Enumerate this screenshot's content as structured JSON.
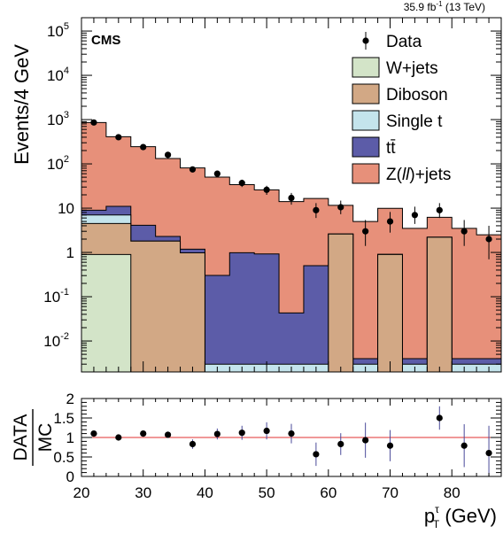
{
  "chart_data": [
    {
      "type": "bar",
      "stacked": true,
      "log_y": true,
      "lumi_label": "35.9 fb",
      "lumi_exp": "-1",
      "lumi_energy": " (13 TeV)",
      "experiment": "CMS",
      "ylabel": "Events/4 GeV",
      "xlim": [
        20,
        88
      ],
      "ylim": [
        0.002,
        200000
      ],
      "y_ticks": [
        {
          "value": 0.01,
          "base": "10",
          "exp": "-2"
        },
        {
          "value": 0.1,
          "base": "10",
          "exp": "-1"
        },
        {
          "value": 1,
          "base": "1",
          "exp": ""
        },
        {
          "value": 10,
          "base": "10",
          "exp": ""
        },
        {
          "value": 100,
          "base": "10",
          "exp": "2"
        },
        {
          "value": 1000,
          "base": "10",
          "exp": "3"
        },
        {
          "value": 10000,
          "base": "10",
          "exp": "4"
        },
        {
          "value": 100000,
          "base": "10",
          "exp": "5"
        }
      ],
      "bin_edges": [
        20,
        24,
        28,
        32,
        36,
        40,
        44,
        48,
        52,
        56,
        60,
        64,
        68,
        72,
        76,
        80,
        84,
        88
      ],
      "series": [
        {
          "name": "W+jets",
          "color": "#d3e4c8",
          "values": [
            0.9,
            0.9,
            0.001,
            0.001,
            0.001,
            0.001,
            0.001,
            0.001,
            0.001,
            0.001,
            0.001,
            0.001,
            0.001,
            0.001,
            0.001,
            0.001,
            0.001
          ]
        },
        {
          "name": "Diboson",
          "color": "#d2a885",
          "values": [
            3.6,
            3.6,
            1.8,
            1.8,
            0.98,
            0.001,
            0.001,
            0.001,
            0.001,
            0.001,
            2.6,
            0.001,
            0.9,
            0.001,
            2.2,
            0.001,
            0.001
          ]
        },
        {
          "name": "Single t",
          "color": "#c4e4ec",
          "values": [
            2.5,
            2.5,
            0.001,
            0.001,
            0.001,
            0.001,
            0.001,
            0.001,
            0.001,
            0.001,
            0.001,
            0.001,
            0.001,
            0.001,
            0.001,
            0.001,
            0.001
          ]
        },
        {
          "name": "tt̄",
          "color": "#5c5ca8",
          "values": [
            2.0,
            4.0,
            2.3,
            0.5,
            0.2,
            0.3,
            0.98,
            0.92,
            0.04,
            0.5,
            0.001,
            0.001,
            0.001,
            0.001,
            0.001,
            0.001,
            0.001
          ]
        },
        {
          "name": "Z(ll)+jets",
          "color": "#e7907a",
          "values": [
            850,
            400,
            240,
            130,
            80,
            50,
            33,
            25,
            14,
            16,
            9,
            5,
            9,
            3.5,
            4,
            3.5,
            2.5
          ]
        }
      ],
      "data": {
        "name": "Data",
        "x": [
          22,
          26,
          30,
          34,
          38,
          42,
          46,
          50,
          54,
          58,
          62,
          66,
          70,
          74,
          78,
          82,
          86
        ],
        "y": [
          860,
          400,
          240,
          160,
          75,
          60,
          37,
          26,
          17,
          9,
          10.5,
          3,
          5,
          7,
          9,
          3,
          2
        ],
        "err_up": [
          30,
          20,
          16,
          13,
          9,
          8,
          7,
          6,
          5,
          4,
          4.3,
          2.4,
          3.2,
          3.8,
          4,
          2.4,
          2.0
        ],
        "err_dn": [
          30,
          20,
          16,
          13,
          9,
          8,
          7,
          6,
          5,
          3,
          3.2,
          1.6,
          2.2,
          2.6,
          3,
          1.6,
          1.3
        ]
      },
      "legend": {
        "position": "top-right",
        "items": [
          {
            "label": "Data",
            "kind": "marker"
          },
          {
            "label": "W+jets",
            "kind": "box",
            "color": "#d3e4c8"
          },
          {
            "label": "Diboson",
            "kind": "box",
            "color": "#d2a885"
          },
          {
            "label": "Single t",
            "kind": "box",
            "color": "#c4e4ec"
          },
          {
            "label": "tt̄",
            "kind": "box",
            "color": "#5c5ca8"
          },
          {
            "label": "Z(ll)+jets",
            "kind": "box",
            "color": "#e7907a"
          }
        ]
      }
    },
    {
      "type": "scatter",
      "ylabel_num": "DATA",
      "ylabel_den": "MC",
      "xlabel": "p",
      "xlabel_sup": "τ",
      "xlabel_sub": "T",
      "xlabel_unit": " (GeV)",
      "xlim": [
        20,
        88
      ],
      "ylim": [
        0,
        2
      ],
      "x_ticks": [
        20,
        30,
        40,
        50,
        60,
        70,
        80
      ],
      "y_ticks": [
        0,
        0.5,
        1,
        1.5,
        2
      ],
      "y_tick_labels": [
        "0",
        "0.5",
        "1",
        "1.5",
        "2"
      ],
      "reference_line": 1,
      "reference_color": "#e03030",
      "x": [
        22,
        26,
        30,
        34,
        38,
        42,
        46,
        50,
        54,
        58,
        62,
        66,
        70,
        74,
        78,
        82,
        86
      ],
      "y": [
        1.1,
        1.0,
        1.1,
        1.07,
        0.83,
        1.09,
        1.12,
        1.17,
        1.1,
        0.57,
        0.83,
        0.93,
        0.79,
        null,
        1.5,
        0.79,
        0.6
      ],
      "err": [
        0.04,
        0.05,
        0.07,
        0.08,
        0.12,
        0.14,
        0.18,
        0.22,
        0.25,
        0.3,
        0.28,
        0.45,
        0.4,
        null,
        0.3,
        0.55,
        0.7
      ]
    }
  ]
}
